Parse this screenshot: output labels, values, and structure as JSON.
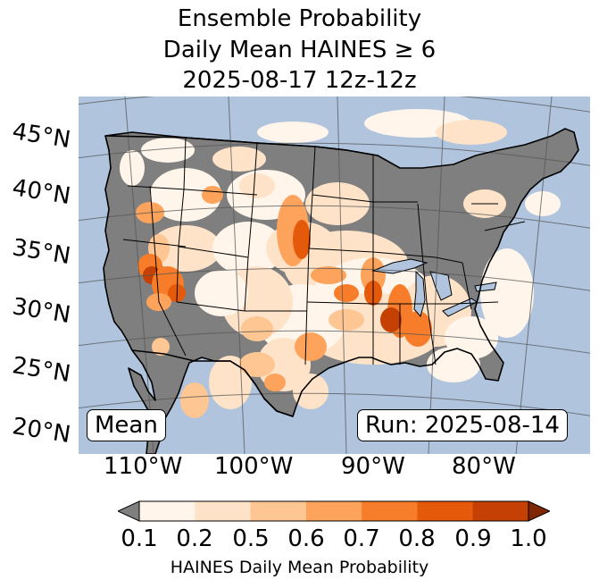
{
  "title_lines": [
    "Ensemble Probability",
    "Daily Mean HAINES ≥ 6",
    "2025-08-17 12z-12z"
  ],
  "map": {
    "latitude_labels": [
      "45°N",
      "40°N",
      "35°N",
      "30°N",
      "25°N",
      "20°N"
    ],
    "longitude_labels": [
      "110°W",
      "100°W",
      "90°W",
      "80°W"
    ],
    "stat_label": "Mean",
    "run_label": "Run: 2025-08-14",
    "colors": {
      "ocean": "#b0c4de",
      "below_min": "#7f7f7f",
      "border": "#000000",
      "graticule": "#555555"
    }
  },
  "colorbar": {
    "label": "HAINES Daily Mean Probability",
    "tick_labels": [
      "0.1",
      "0.2",
      "0.5",
      "0.6",
      "0.7",
      "0.8",
      "0.9",
      "1.0"
    ],
    "bins": [
      {
        "from": 0.1,
        "to": 0.2,
        "color": "#fff5eb"
      },
      {
        "from": 0.2,
        "to": 0.5,
        "color": "#fee3c8"
      },
      {
        "from": 0.5,
        "to": 0.6,
        "color": "#fdc692"
      },
      {
        "from": 0.6,
        "to": 0.7,
        "color": "#fda35c"
      },
      {
        "from": 0.7,
        "to": 0.8,
        "color": "#f87d2a"
      },
      {
        "from": 0.8,
        "to": 0.9,
        "color": "#e5590a"
      },
      {
        "from": 0.9,
        "to": 1.0,
        "color": "#c44103"
      }
    ],
    "under_color": "#7f7f7f",
    "over_color": "#7f2704"
  }
}
